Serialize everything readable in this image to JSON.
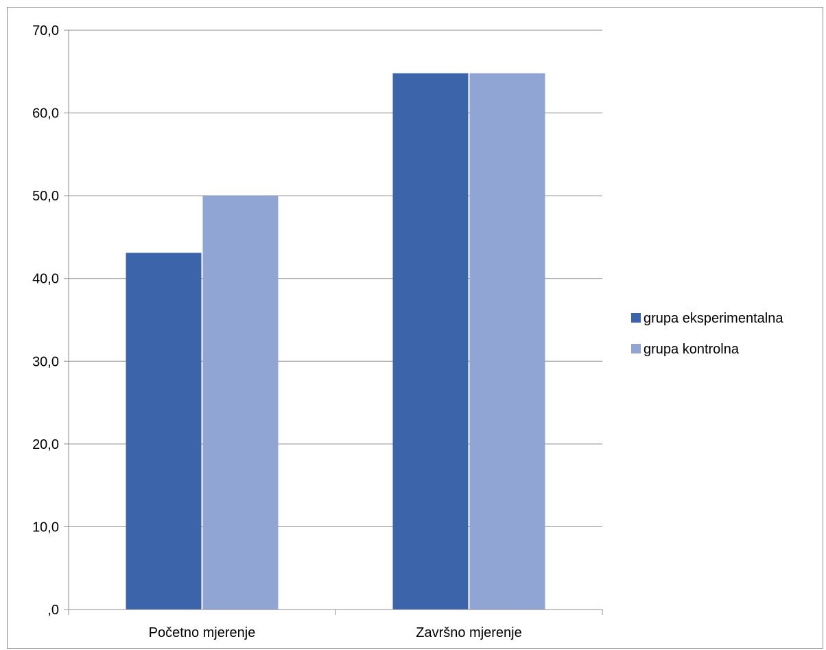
{
  "chart_data": {
    "type": "bar",
    "title": "",
    "xlabel": "",
    "ylabel": "",
    "categories": [
      "Početno mjerenje",
      "Završno mjerenje"
    ],
    "series": [
      {
        "name": "grupa eksperimentalna",
        "values": [
          43.1,
          64.8
        ],
        "color": "#3c64aa"
      },
      {
        "name": "grupa kontrolna",
        "values": [
          50.0,
          64.8
        ],
        "color": "#91a5d5"
      }
    ],
    "ylim": [
      0,
      70
    ],
    "yticks": [
      ",0",
      "10,0",
      "20,0",
      "30,0",
      "40,0",
      "50,0",
      "60,0",
      "70,0"
    ],
    "grid": true,
    "legend": "right"
  }
}
